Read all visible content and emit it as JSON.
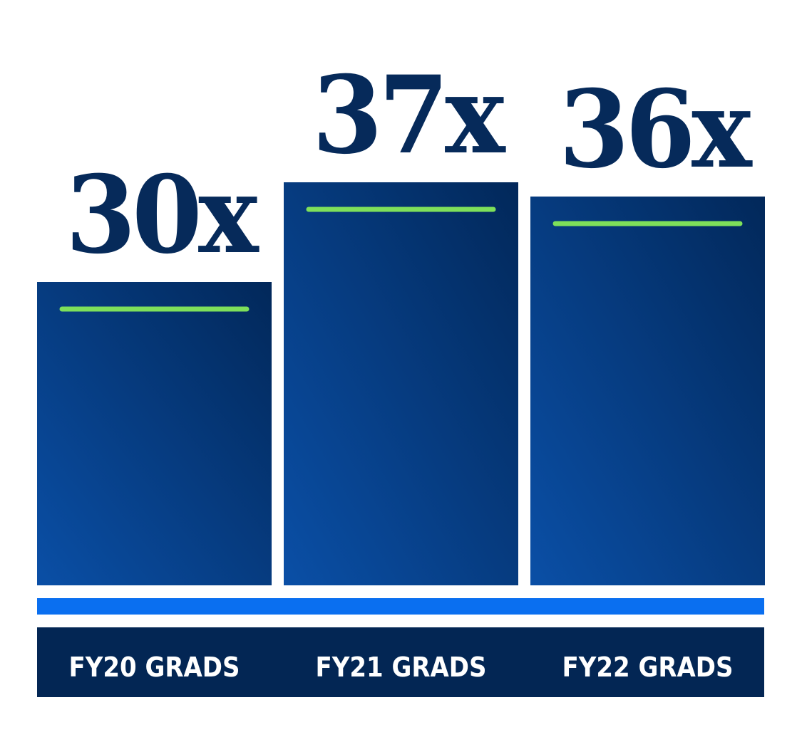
{
  "chart_data": {
    "type": "bar",
    "categories": [
      "FY20 GRADS",
      "FY21 GRADS",
      "FY22 GRADS"
    ],
    "values": [
      30,
      37,
      36
    ],
    "value_labels": [
      "30x",
      "37x",
      "36x"
    ],
    "title": "",
    "xlabel": "",
    "ylabel": "",
    "grid": false,
    "legend": "none"
  },
  "colors": {
    "bar_dark": "#02285a",
    "bar_light": "#0a4fa6",
    "marker_green": "#7ee05a",
    "baseline_blue": "#0a6ff0",
    "footer_navy": "#032654",
    "label_text": "#ffffff",
    "value_text": "#062a5a"
  }
}
